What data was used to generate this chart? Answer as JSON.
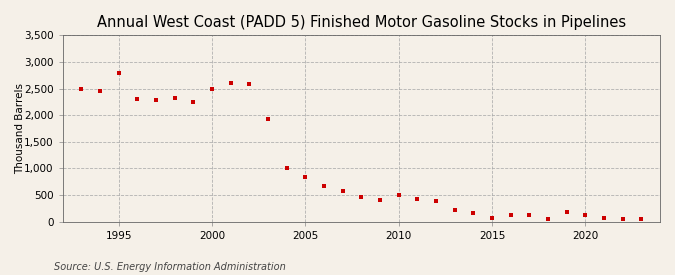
{
  "title": "Annual West Coast (PADD 5) Finished Motor Gasoline Stocks in Pipelines",
  "ylabel": "Thousand Barrels",
  "source": "Source: U.S. Energy Information Administration",
  "background_color": "#f5f0e8",
  "plot_bg_color": "#f5f0e8",
  "marker_color": "#cc0000",
  "years": [
    1993,
    1994,
    1995,
    1996,
    1997,
    1998,
    1999,
    2000,
    2001,
    2002,
    2003,
    2004,
    2005,
    2006,
    2007,
    2008,
    2009,
    2010,
    2011,
    2012,
    2013,
    2014,
    2015,
    2016,
    2017,
    2018,
    2019,
    2020,
    2021,
    2022,
    2023
  ],
  "values": [
    2500,
    2450,
    2800,
    2300,
    2280,
    2320,
    2250,
    2500,
    2600,
    2580,
    1920,
    1000,
    840,
    670,
    570,
    470,
    410,
    500,
    430,
    380,
    220,
    160,
    65,
    125,
    130,
    55,
    190,
    120,
    75,
    45,
    60
  ],
  "ylim": [
    0,
    3500
  ],
  "yticks": [
    0,
    500,
    1000,
    1500,
    2000,
    2500,
    3000,
    3500
  ],
  "xlim": [
    1992,
    2024
  ],
  "xticks": [
    1995,
    2000,
    2005,
    2010,
    2015,
    2020
  ],
  "title_fontsize": 10.5,
  "label_fontsize": 7.5,
  "tick_fontsize": 7.5,
  "source_fontsize": 7
}
